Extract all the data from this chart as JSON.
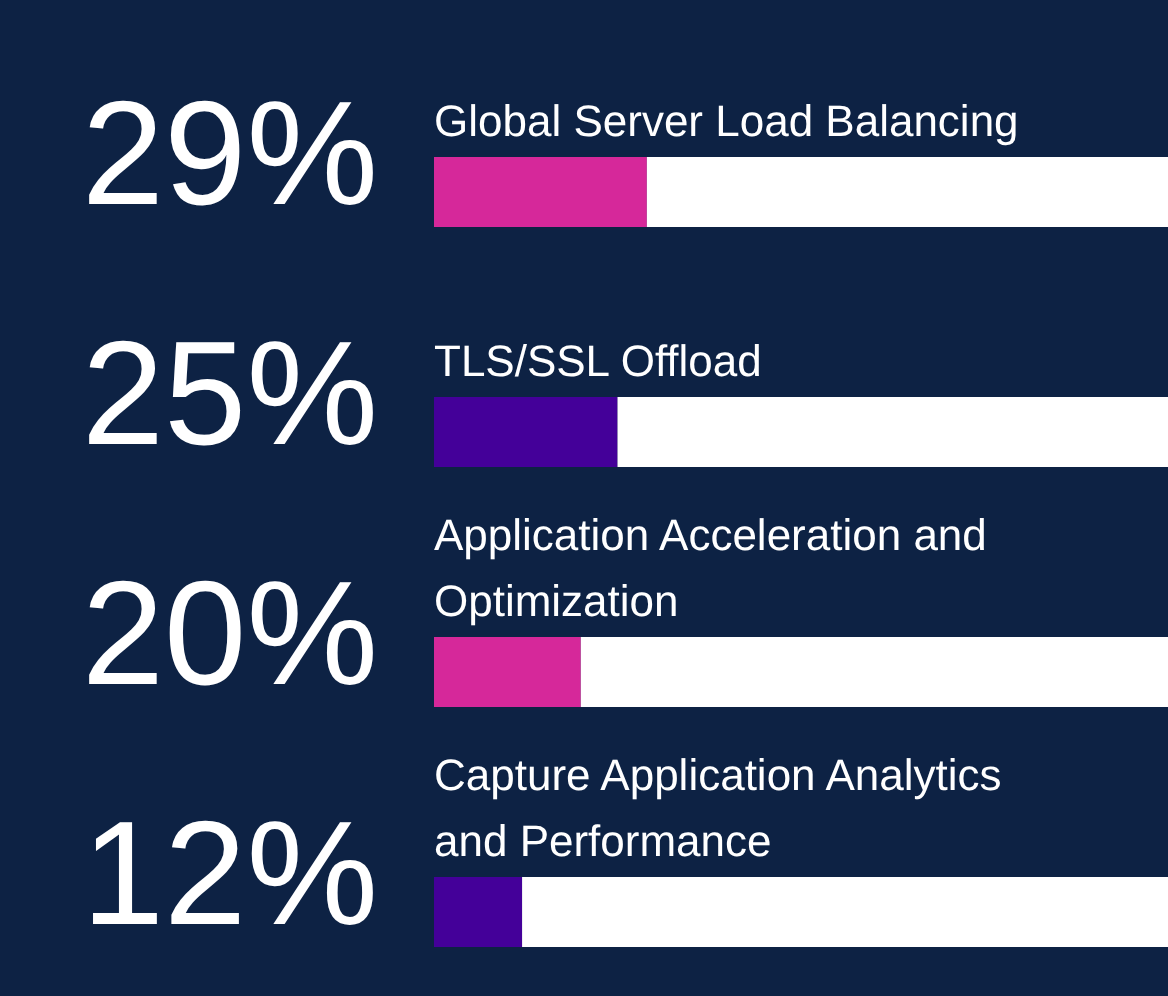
{
  "chart_data": {
    "type": "bar",
    "orientation": "horizontal",
    "stacked": true,
    "categories": [
      "Global Server Load Balancing",
      "TLS/SSL Offload",
      "Application Acceleration and Optimization",
      "Capture Application Analytics and Performance"
    ],
    "series": [
      {
        "colors": [
          "#d6289a",
          "#440099",
          "#d6289a",
          "#440099"
        ],
        "values": [
          29,
          25,
          20,
          12
        ],
        "value_labels": [
          "29%",
          "25%",
          "20%",
          "12%"
        ]
      },
      {
        "color": "#ffffff",
        "values": [
          71,
          75,
          80,
          88
        ]
      }
    ],
    "xlim": [
      0,
      100
    ],
    "tick_labels": false
  }
}
